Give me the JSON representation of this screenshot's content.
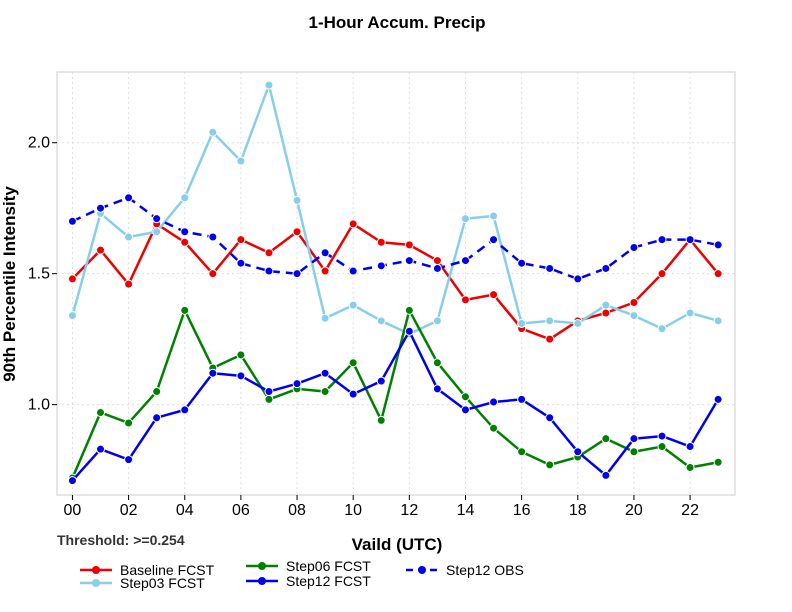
{
  "chart_data": {
    "type": "line",
    "title": "1-Hour Accum. Precip",
    "xlabel": "Vaild (UTC)",
    "ylabel": "90th Percentile Intensity",
    "note": "Threshold: >=0.254",
    "x": [
      0,
      1,
      2,
      3,
      4,
      5,
      6,
      7,
      8,
      9,
      10,
      11,
      12,
      13,
      14,
      15,
      16,
      17,
      18,
      19,
      20,
      21,
      22,
      23
    ],
    "xticks": [
      0,
      2,
      4,
      6,
      8,
      10,
      12,
      14,
      16,
      18,
      20,
      22
    ],
    "xtick_labels": [
      "00",
      "02",
      "04",
      "06",
      "08",
      "10",
      "12",
      "14",
      "16",
      "18",
      "20",
      "22"
    ],
    "xlim": [
      -0.55,
      23.6
    ],
    "yticks": [
      1.0,
      1.5,
      2.0
    ],
    "ytick_labels": [
      "1.0",
      "1.5",
      "2.0"
    ],
    "ylim": [
      0.655,
      2.27
    ],
    "grid": true,
    "legend_position": "bottom",
    "series": [
      {
        "name": "Baseline FCST",
        "color": "#ee0000",
        "dash": "solid",
        "values": [
          1.48,
          1.59,
          1.46,
          1.69,
          1.62,
          1.5,
          1.63,
          1.58,
          1.66,
          1.51,
          1.69,
          1.62,
          1.61,
          1.55,
          1.4,
          1.42,
          1.29,
          1.25,
          1.32,
          1.35,
          1.39,
          1.5,
          1.63,
          1.5
        ]
      },
      {
        "name": "Step03 FCST",
        "color": "#87ceeb",
        "dash": "solid",
        "values": [
          1.34,
          1.73,
          1.64,
          1.66,
          1.79,
          2.04,
          1.93,
          2.22,
          1.78,
          1.33,
          1.38,
          1.32,
          1.27,
          1.32,
          1.71,
          1.72,
          1.31,
          1.32,
          1.31,
          1.38,
          1.34,
          1.29,
          1.35,
          1.32
        ]
      },
      {
        "name": "Step06 FCST",
        "color": "#008000",
        "dash": "solid",
        "values": [
          0.72,
          0.97,
          0.93,
          1.05,
          1.36,
          1.14,
          1.19,
          1.02,
          1.06,
          1.05,
          1.16,
          0.94,
          1.36,
          1.16,
          1.03,
          0.91,
          0.82,
          0.77,
          0.8,
          0.87,
          0.82,
          0.84,
          0.76,
          0.78
        ]
      },
      {
        "name": "Step12 FCST",
        "color": "#0000ee",
        "dash": "solid",
        "values": [
          0.71,
          0.83,
          0.79,
          0.95,
          0.98,
          1.12,
          1.11,
          1.05,
          1.08,
          1.12,
          1.04,
          1.09,
          1.28,
          1.06,
          0.98,
          1.01,
          1.02,
          0.95,
          0.82,
          0.73,
          0.87,
          0.88,
          0.84,
          1.02
        ]
      },
      {
        "name": "Step12 OBS",
        "color": "#0000ee",
        "dash": "dashed",
        "values": [
          1.7,
          1.75,
          1.79,
          1.71,
          1.66,
          1.64,
          1.54,
          1.51,
          1.5,
          1.58,
          1.51,
          1.53,
          1.55,
          1.52,
          1.55,
          1.63,
          1.54,
          1.52,
          1.48,
          1.52,
          1.6,
          1.63,
          1.63,
          1.61
        ]
      }
    ]
  }
}
